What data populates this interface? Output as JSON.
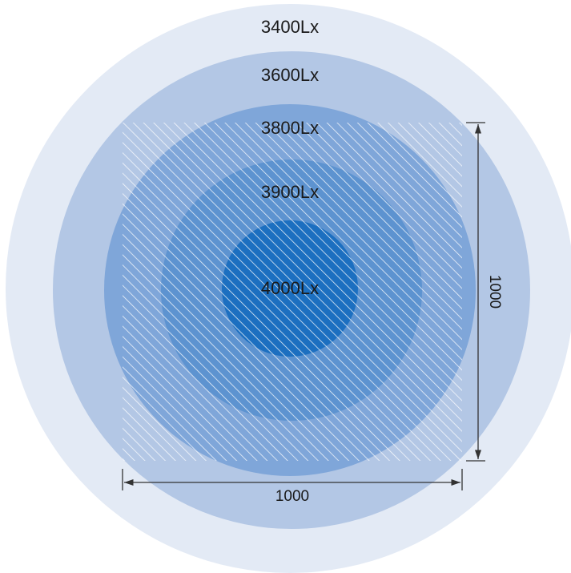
{
  "illuminance_zones": [
    {
      "label": "3400Lx",
      "color": "#e3eaf5"
    },
    {
      "label": "3600Lx",
      "color": "#b3c7e5"
    },
    {
      "label": "3800Lx",
      "color": "#7fa6d9"
    },
    {
      "label": "3900Lx",
      "color": "#5d93d0"
    },
    {
      "label": "4000Lx",
      "color": "#1c6fc0"
    }
  ],
  "dimensions": {
    "width_label": "1000",
    "height_label": "1000"
  },
  "hatch_color": "#ffffff"
}
